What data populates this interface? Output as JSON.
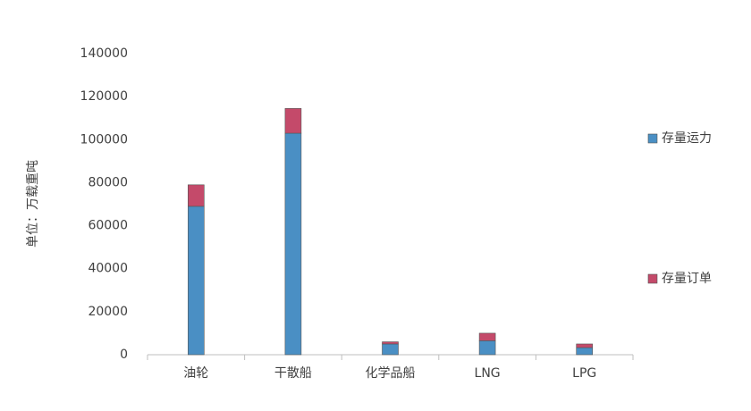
{
  "chart_data": {
    "type": "stacked_bar",
    "y_label": "单位：万载重吨",
    "categories": [
      "油轮",
      "干散船",
      "化学品船",
      "LNG",
      "LPG"
    ],
    "series": [
      {
        "name": "存量运力",
        "color": "#4a8fc4",
        "values": [
          69000,
          103000,
          5000,
          6500,
          3300
        ]
      },
      {
        "name": "存量订单",
        "color": "#c44a6a",
        "values": [
          10000,
          11500,
          1000,
          3500,
          1700
        ]
      }
    ],
    "ylim": [
      0,
      140000
    ],
    "yticks": [
      0,
      20000,
      40000,
      60000,
      80000,
      100000,
      120000,
      140000
    ],
    "legend": "right"
  }
}
